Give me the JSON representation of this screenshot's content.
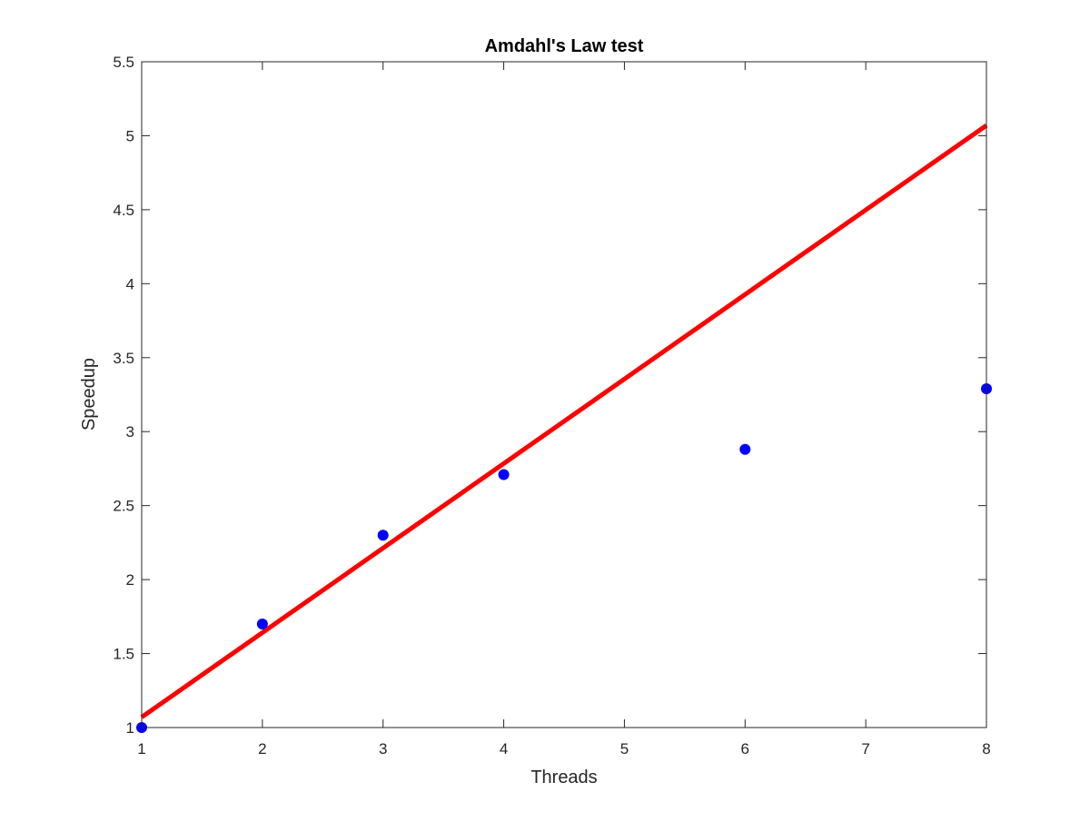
{
  "chart_data": {
    "type": "scatter",
    "title": "Amdahl's Law test",
    "xlabel": "Threads",
    "ylabel": "Speedup",
    "xlim": [
      1,
      8
    ],
    "ylim": [
      1,
      5.5
    ],
    "xticks": [
      1,
      2,
      3,
      4,
      5,
      6,
      7,
      8
    ],
    "xtick_labels": [
      "1",
      "2",
      "3",
      "4",
      "5",
      "6",
      "7",
      "8"
    ],
    "yticks": [
      1,
      1.5,
      2,
      2.5,
      3,
      3.5,
      4,
      4.5,
      5,
      5.5
    ],
    "ytick_labels": [
      "1",
      "1.5",
      "2",
      "2.5",
      "3",
      "3.5",
      "4",
      "4.5",
      "5",
      "5.5"
    ],
    "grid": false,
    "series": [
      {
        "type": "scatter",
        "color": "#0000ff",
        "x": [
          1,
          2,
          3,
          4,
          6,
          8
        ],
        "y": [
          1.0,
          1.7,
          2.3,
          2.71,
          2.88,
          3.29
        ]
      },
      {
        "type": "line",
        "color": "#ff0000",
        "x": [
          1,
          8
        ],
        "y": [
          1.07,
          5.07
        ]
      }
    ]
  }
}
